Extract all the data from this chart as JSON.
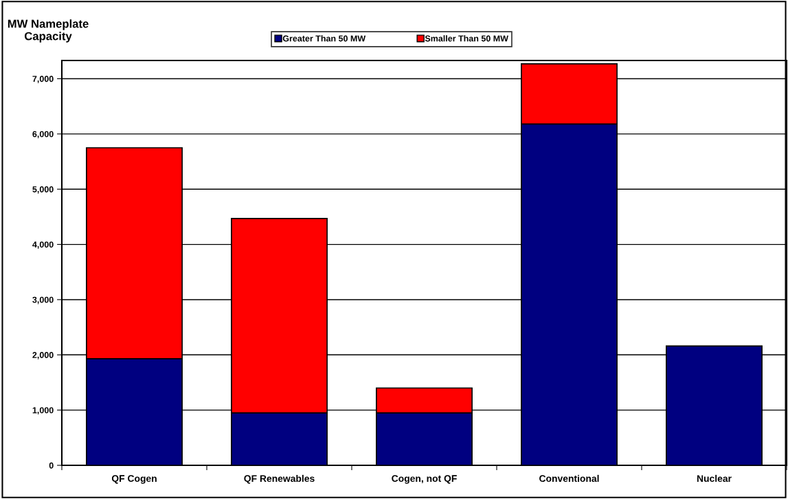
{
  "chart_data": {
    "type": "bar",
    "stacked": true,
    "ylabel": "MW Nameplate\nCapacity",
    "categories": [
      "QF Cogen",
      "QF Renewables",
      "Cogen, not QF",
      "Conventional",
      "Nuclear"
    ],
    "series": [
      {
        "name": "Greater Than 50 MW",
        "color": "#000080",
        "values": [
          1930,
          950,
          950,
          6180,
          2160
        ]
      },
      {
        "name": "Smaller Than 50 MW",
        "color": "#ff0000",
        "values": [
          3820,
          3520,
          450,
          1090,
          null
        ]
      }
    ],
    "ylim": [
      0,
      7330
    ],
    "yticks": [
      0,
      {
        "value": 1000,
        "label": "1,000"
      },
      {
        "value": 2000,
        "label": "2,000"
      },
      {
        "value": 3000,
        "label": "3,000"
      },
      {
        "value": 4000,
        "label": "4,000"
      },
      {
        "value": 5000,
        "label": "5,000"
      },
      {
        "value": 6000,
        "label": "6,000"
      },
      {
        "value": 7000,
        "label": "7,000"
      }
    ],
    "grid": "y",
    "legend": "top"
  }
}
